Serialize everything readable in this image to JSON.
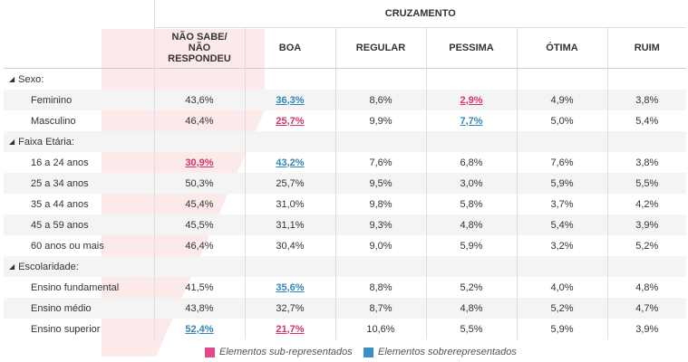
{
  "table": {
    "group_header": "CRUZAMENTO",
    "columns": [
      [
        "NÃO SABE/",
        "NÃO",
        "RESPONDEU"
      ],
      [
        "BOA"
      ],
      [
        "REGULAR"
      ],
      [
        "PESSIMA"
      ],
      [
        "ÓTIMA"
      ],
      [
        "RUIM"
      ]
    ],
    "sections": [
      {
        "label": "Sexo:",
        "rows": [
          {
            "label": "Feminino",
            "values": [
              "43,6%",
              "36,3%",
              "8,6%",
              "2,9%",
              "4,9%",
              "3,8%"
            ]
          },
          {
            "label": "Masculino",
            "values": [
              "46,4%",
              "25,7%",
              "9,9%",
              "7,7%",
              "5,0%",
              "5,4%"
            ]
          }
        ]
      },
      {
        "label": "Faixa Etária:",
        "rows": [
          {
            "label": "16 a 24 anos",
            "values": [
              "30,9%",
              "43,2%",
              "7,6%",
              "6,8%",
              "7,6%",
              "3,8%"
            ]
          },
          {
            "label": "25 a 34 anos",
            "values": [
              "50,3%",
              "25,7%",
              "9,5%",
              "3,0%",
              "5,9%",
              "5,5%"
            ]
          },
          {
            "label": "35 a 44 anos",
            "values": [
              "45,4%",
              "31,0%",
              "9,8%",
              "5,8%",
              "3,7%",
              "4,2%"
            ]
          },
          {
            "label": "45 a 59 anos",
            "values": [
              "45,5%",
              "31,1%",
              "9,3%",
              "4,8%",
              "5,4%",
              "3,9%"
            ]
          },
          {
            "label": "60 anos ou mais",
            "values": [
              "46,4%",
              "30,4%",
              "9,0%",
              "5,9%",
              "3,2%",
              "5,2%"
            ]
          }
        ]
      },
      {
        "label": "Escolaridade:",
        "rows": [
          {
            "label": "Ensino fundamental",
            "values": [
              "41,5%",
              "35,6%",
              "8,8%",
              "5,2%",
              "4,0%",
              "4,8%"
            ]
          },
          {
            "label": "Ensino médio",
            "values": [
              "43,8%",
              "32,7%",
              "8,7%",
              "4,8%",
              "5,2%",
              "4,7%"
            ]
          },
          {
            "label": "Ensino superior",
            "values": [
              "52,4%",
              "21,7%",
              "10,6%",
              "5,5%",
              "5,9%",
              "3,9%"
            ]
          }
        ]
      }
    ],
    "highlights": {
      "Sexo:|Feminino|1": "blue",
      "Sexo:|Feminino|3": "pink",
      "Sexo:|Masculino|1": "pink",
      "Sexo:|Masculino|3": "blue",
      "Faixa Etária:|16 a 24 anos|0": "pink",
      "Faixa Etária:|16 a 24 anos|1": "blue",
      "Escolaridade:|Ensino fundamental|1": "blue",
      "Escolaridade:|Ensino superior|0": "blue",
      "Escolaridade:|Ensino superior|1": "pink"
    }
  },
  "legend": {
    "under_label": "Elementos sub-representados",
    "over_label": "Elementos sobrerepresentados",
    "under_color": "#e2498a",
    "over_color": "#3a8fc4"
  },
  "colors": {
    "pink_text": "#d8306e",
    "blue_text": "#2f86b8",
    "watermark": "#fbe3e3"
  }
}
